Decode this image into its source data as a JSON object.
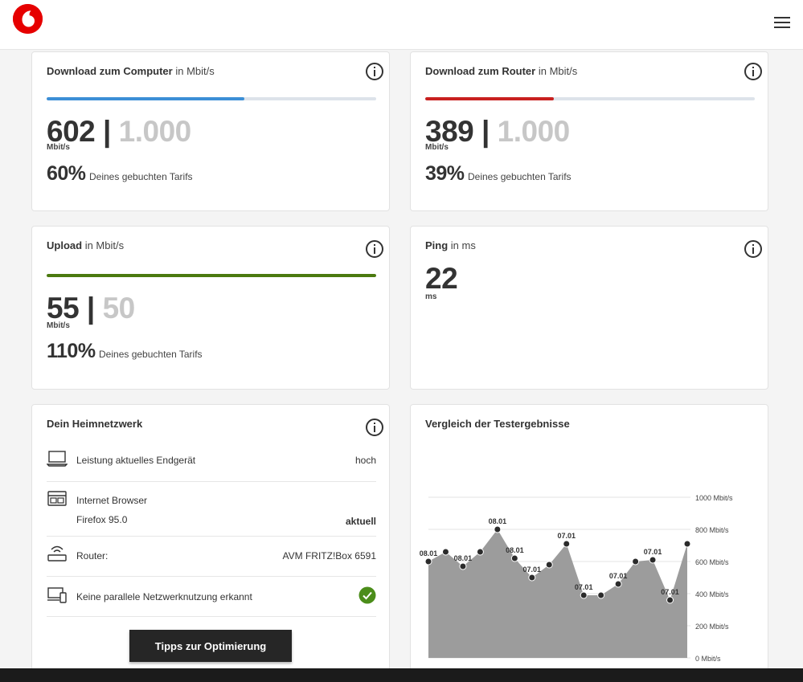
{
  "header": {
    "logo_icon": "vodafone-logo",
    "menu_icon": "hamburger-icon"
  },
  "download_computer": {
    "title": "Download zum Computer",
    "unit": "in Mbit/s",
    "value": "602",
    "max": "1.000",
    "value_unit": "Mbit/s",
    "percent": "60%",
    "percent_text": "Deines gebuchten Tarifs",
    "fill_fraction": 0.6,
    "bar_color": "#3c8fd6"
  },
  "download_router": {
    "title": "Download zum Router",
    "unit": "in Mbit/s",
    "value": "389",
    "max": "1.000",
    "value_unit": "Mbit/s",
    "percent": "39%",
    "percent_text": "Deines gebuchten Tarifs",
    "fill_fraction": 0.39,
    "bar_color": "#c8201f"
  },
  "upload": {
    "title": "Upload",
    "unit": "in Mbit/s",
    "value": "55",
    "max": "50",
    "value_unit": "Mbit/s",
    "percent": "110%",
    "percent_text": "Deines gebuchten Tarifs",
    "fill_fraction": 1.0,
    "bar_color": "#4b7a0f"
  },
  "ping": {
    "title": "Ping",
    "unit": "in ms",
    "value": "22",
    "value_unit": "ms"
  },
  "heimnetz": {
    "title": "Dein Heimnetzwerk",
    "rows": [
      {
        "icon": "laptop-icon",
        "label": "Leistung aktuelles Endgerät",
        "value": "hoch"
      },
      {
        "icon": "browser-icon",
        "label": "Internet Browser",
        "sublabel": "Firefox 95.0",
        "value": "aktuell"
      },
      {
        "icon": "router-icon",
        "label": "Router:",
        "value": "AVM FRITZ!Box 6591"
      },
      {
        "icon": "devices-icon",
        "label": "Keine parallele Netzwerknutzung erkannt",
        "value_icon": "check-icon"
      }
    ],
    "button_label": "Tipps zur Optimierung",
    "check_color": "#4b8d1a"
  },
  "chart_data": {
    "type": "area",
    "title": "Vergleich der Testergebnisse",
    "ylim": [
      0,
      1000
    ],
    "yticks": [
      "1000 Mbit/s",
      "800 Mbit/s",
      "600 Mbit/s",
      "400 Mbit/s",
      "200 Mbit/s",
      "0 Mbit/s"
    ],
    "ytick_values": [
      1000,
      800,
      600,
      400,
      200,
      0
    ],
    "values": [
      600,
      660,
      570,
      660,
      800,
      620,
      500,
      580,
      710,
      390,
      390,
      460,
      600,
      610,
      360,
      710
    ],
    "labels": [
      "08.01",
      "",
      "08.01",
      "",
      "08.01",
      "08.01",
      "07.01",
      "",
      "07.01",
      "07.01",
      "",
      "07.01",
      "",
      "07.01",
      "07.01",
      ""
    ],
    "fill_color": "#9c9c9c",
    "point_color": "#2b2b2b"
  }
}
